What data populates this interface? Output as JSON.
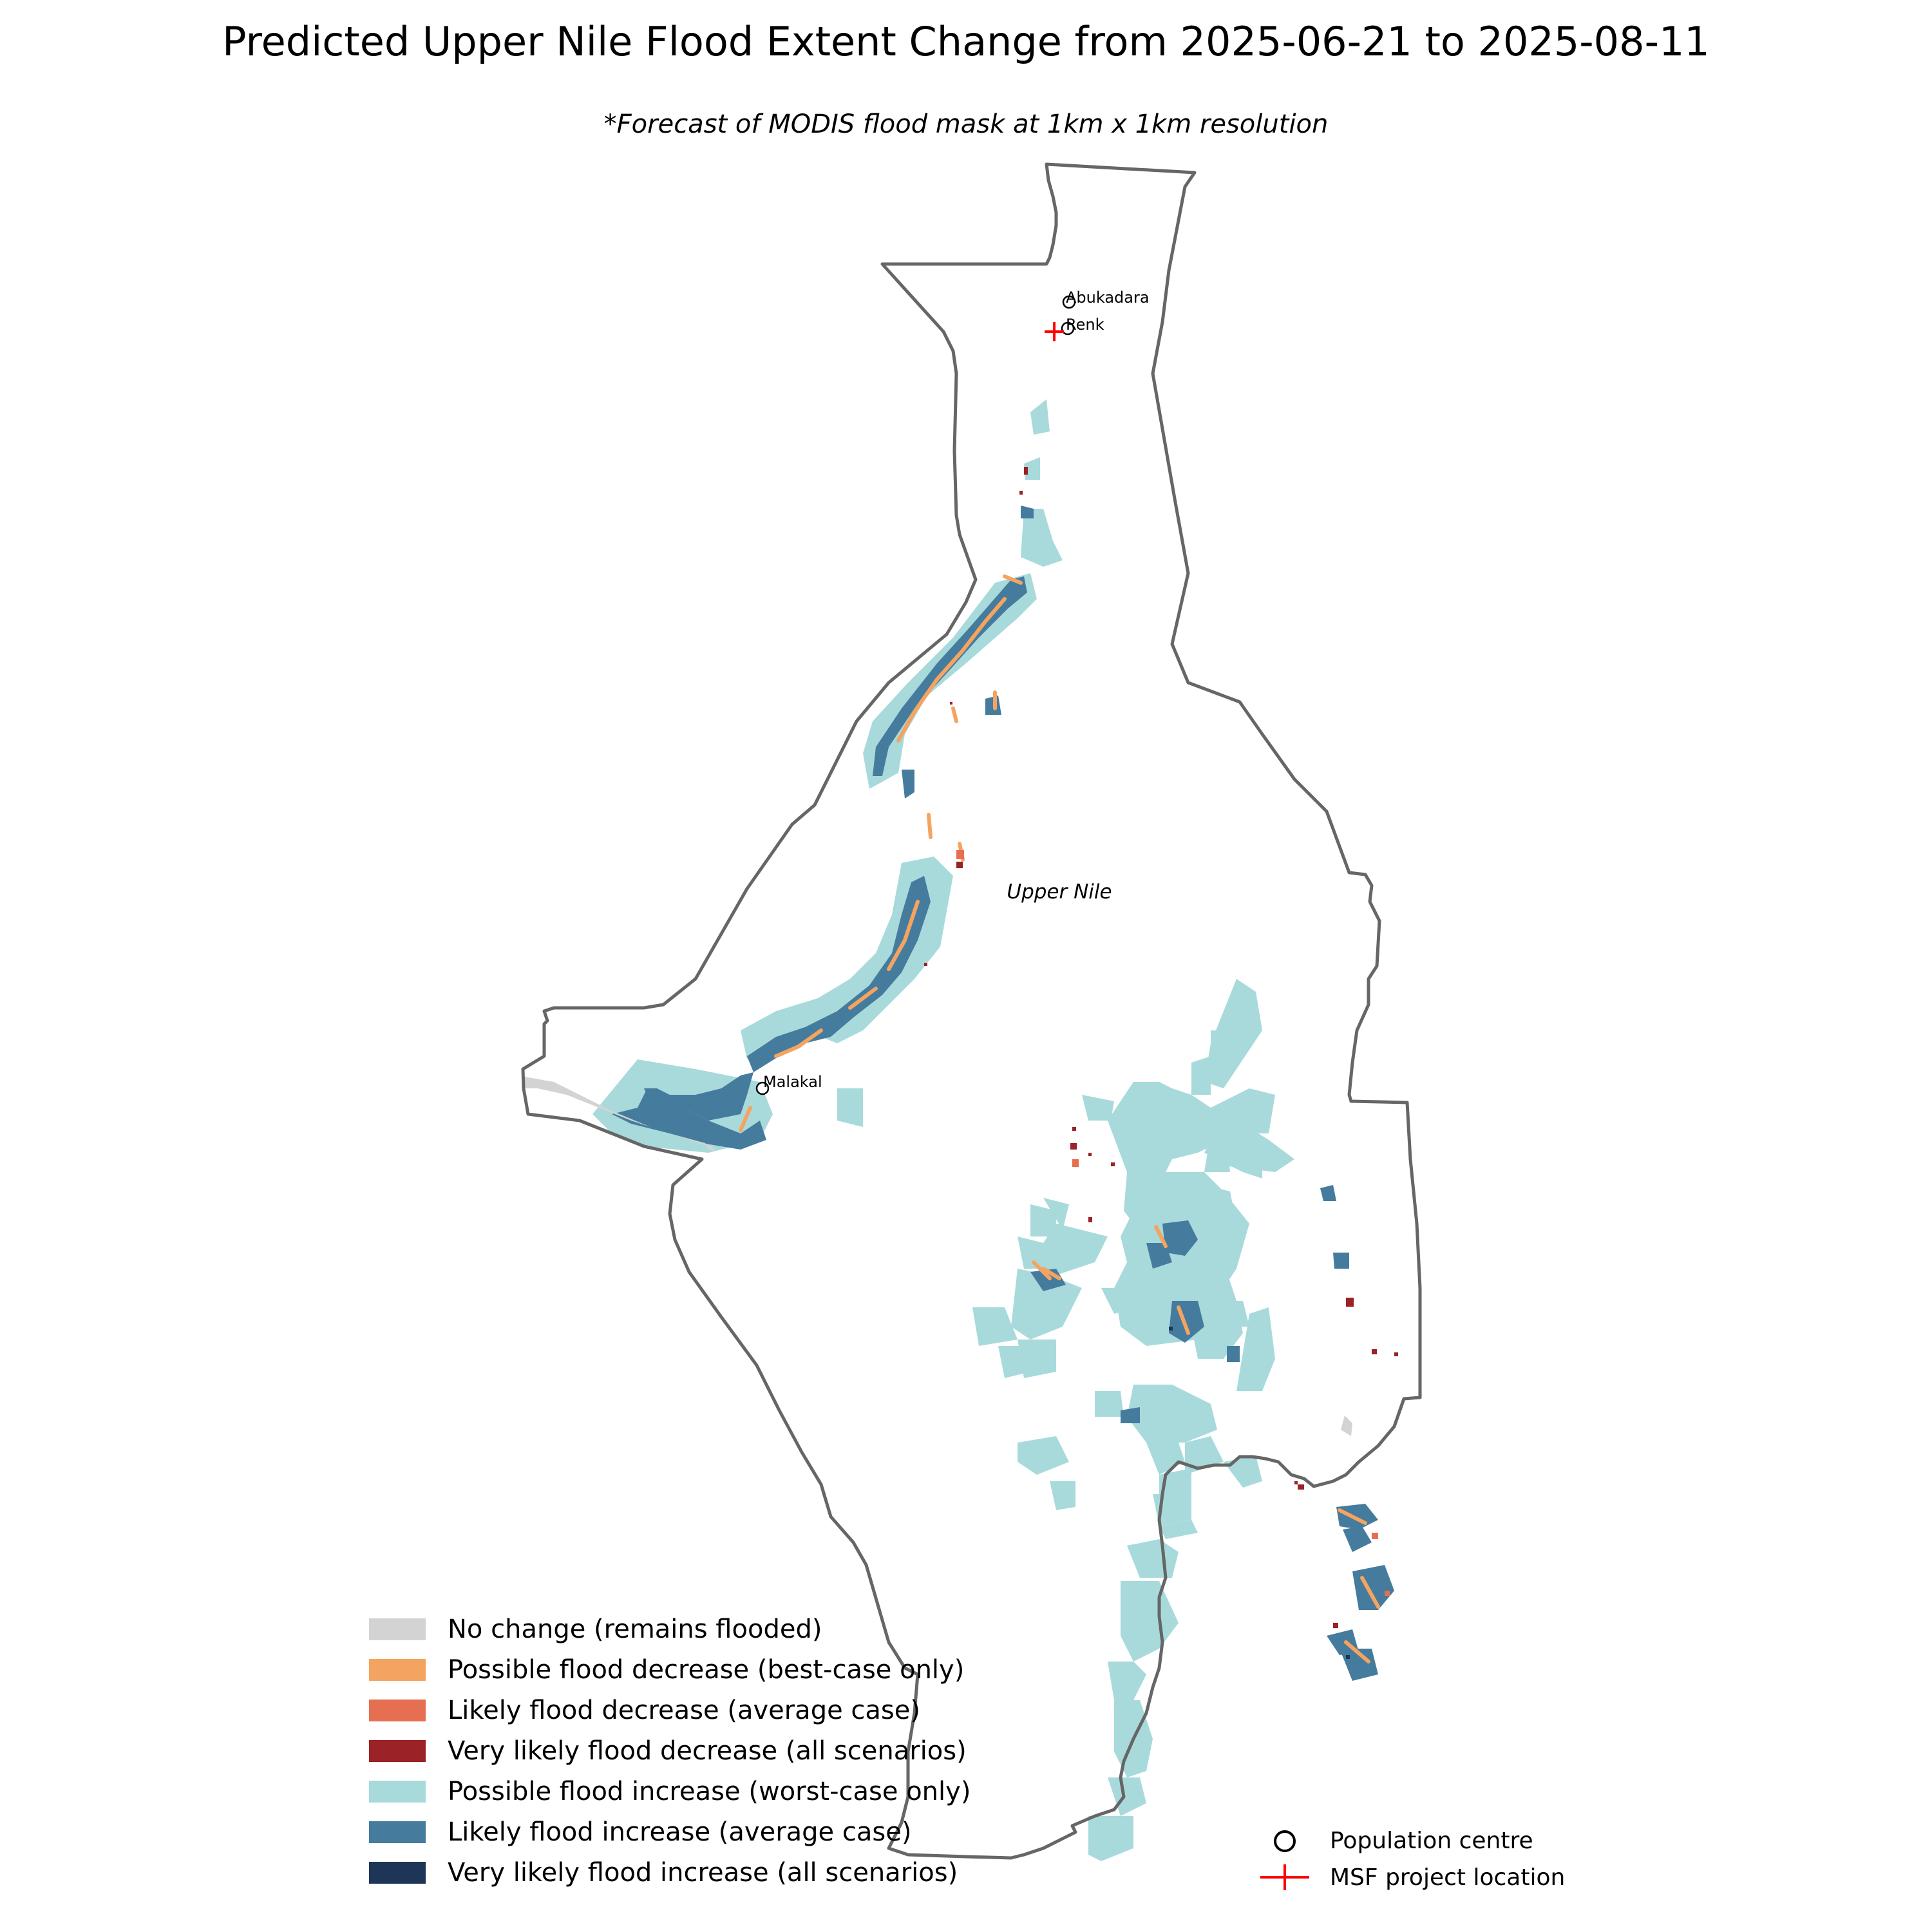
{
  "title": "Predicted Upper Nile Flood Extent Change from 2025-06-21 to 2025-08-11",
  "subtitle": "*Forecast of MODIS flood mask at 1km x 1km resolution",
  "region_label": "Upper Nile",
  "places": [
    {
      "name": "Abukadara",
      "type": "population-centre"
    },
    {
      "name": "Renk",
      "type": "population-centre"
    },
    {
      "name": "Malakal",
      "type": "population-centre"
    }
  ],
  "legend": {
    "categories": [
      {
        "label": "No change (remains flooded)",
        "color": "#d3d3d3"
      },
      {
        "label": "Possible flood decrease (best-case only)",
        "color": "#f4a460"
      },
      {
        "label": "Likely flood decrease (average case)",
        "color": "#e76f51"
      },
      {
        "label": "Very likely flood decrease (all scenarios)",
        "color": "#9b2226"
      },
      {
        "label": "Possible flood increase (worst-case only)",
        "color": "#a8dadc"
      },
      {
        "label": "Likely flood increase (average case)",
        "color": "#457b9d"
      },
      {
        "label": "Very likely flood increase (all scenarios)",
        "color": "#1d3557"
      }
    ],
    "markers": [
      {
        "label": "Population centre",
        "symbol": "circle"
      },
      {
        "label": "MSF project location",
        "symbol": "red-cross",
        "color": "#ff0000"
      }
    ]
  },
  "colors": {
    "boundary": "#666666",
    "no_change": "#d3d3d3",
    "possible_decrease": "#f4a460",
    "likely_decrease": "#e76f51",
    "very_likely_decrease": "#9b2226",
    "possible_increase": "#a8dadc",
    "likely_increase": "#457b9d",
    "very_likely_increase": "#1d3557"
  }
}
